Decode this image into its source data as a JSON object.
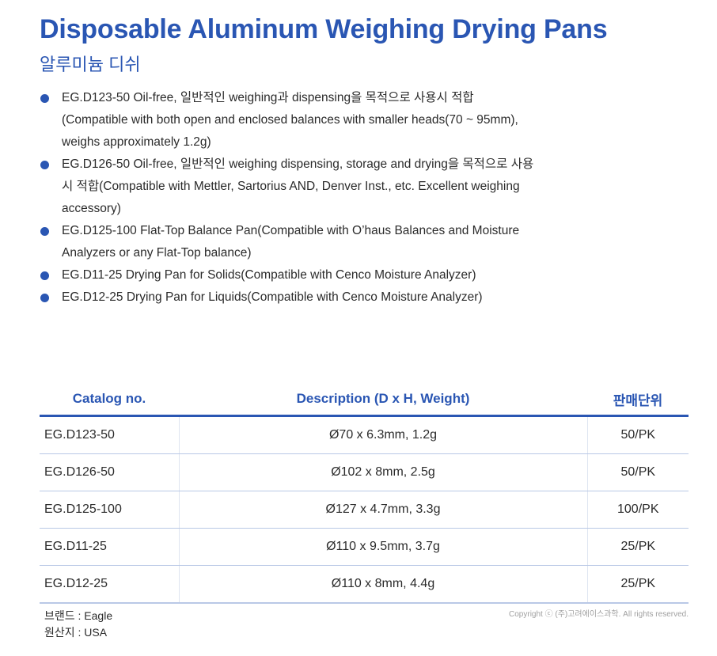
{
  "header": {
    "title": "Disposable Aluminum Weighing Drying Pans",
    "subtitle": "알루미늄 디쉬"
  },
  "features": [
    {
      "lines": [
        "EG.D123-50 Oil-free, 일반적인 weighing과 dispensing을 목적으로 사용시 적합",
        "(Compatible with both open and enclosed balances with smaller heads(70 ~ 95mm),",
        "weighs approximately 1.2g)"
      ]
    },
    {
      "lines": [
        "EG.D126-50 Oil-free, 일반적인 weighing dispensing, storage and drying을 목적으로 사용",
        "시 적합(Compatible with Mettler, Sartorius AND, Denver Inst., etc. Excellent weighing",
        "accessory)"
      ]
    },
    {
      "lines": [
        "EG.D125-100 Flat-Top Balance Pan(Compatible with O’haus Balances and Moisture",
        "Analyzers or any Flat-Top balance)"
      ]
    },
    {
      "lines": [
        "EG.D11-25 Drying Pan for Solids(Compatible with Cenco Moisture Analyzer)"
      ]
    },
    {
      "lines": [
        "EG.D12-25 Drying Pan for Liquids(Compatible with Cenco Moisture Analyzer)"
      ]
    }
  ],
  "table": {
    "headers": {
      "catalog": "Catalog no.",
      "description": "Description (D x H, Weight)",
      "unit": "판매단위"
    },
    "rows": [
      {
        "catalog": "EG.D123-50",
        "description": "Ø70 x 6.3mm, 1.2g",
        "unit": "50/PK"
      },
      {
        "catalog": "EG.D126-50",
        "description": "Ø102 x 8mm, 2.5g",
        "unit": "50/PK"
      },
      {
        "catalog": "EG.D125-100",
        "description": "Ø127 x 4.7mm, 3.3g",
        "unit": "100/PK"
      },
      {
        "catalog": "EG.D11-25",
        "description": "Ø110 x 9.5mm, 3.7g",
        "unit": "25/PK"
      },
      {
        "catalog": "EG.D12-25",
        "description": "Ø110 x 8mm, 4.4g",
        "unit": "25/PK"
      }
    ]
  },
  "footer": {
    "brand": "브랜드 : Eagle",
    "origin": "원산지 : USA",
    "copyright": "Copyright ⓒ (주)고려에이스과학. All rights reserved."
  },
  "colors": {
    "accent": "#2a56b3",
    "text": "#2b2b2b",
    "rule": "#b9c8e6",
    "copyright": "#a0a0a0"
  }
}
